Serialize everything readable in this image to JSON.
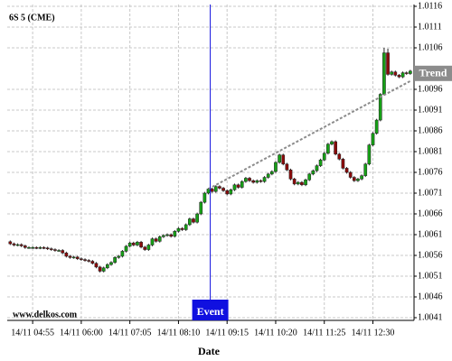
{
  "chart_data": {
    "type": "candlestick",
    "title": "6S 5 (CME)",
    "watermark": "www.delkos.com",
    "x_label": "Date",
    "xlim": [
      -0.8,
      108
    ],
    "xticks": [
      {
        "value": 6,
        "label": "14/11 04:55"
      },
      {
        "value": 19,
        "label": "14/11 06:00"
      },
      {
        "value": 32,
        "label": "14/11 07:05"
      },
      {
        "value": 45,
        "label": "14/11 08:10"
      },
      {
        "value": 58,
        "label": "14/11 09:15"
      },
      {
        "value": 71,
        "label": "14/11 10:20"
      },
      {
        "value": 84,
        "label": "14/11 11:25"
      },
      {
        "value": 97,
        "label": "14/11 12:30"
      }
    ],
    "ylim": [
      1.0041,
      1.0116
    ],
    "yticks": [
      1.0041,
      1.0046,
      1.0051,
      1.0056,
      1.0061,
      1.0066,
      1.0071,
      1.0076,
      1.0081,
      1.0086,
      1.0091,
      1.0096,
      1.0106,
      1.0111,
      1.0116
    ],
    "grid": true,
    "up_color": "#16a016",
    "down_color": "#8b0a0a",
    "open": [
      1.00593,
      1.00588,
      1.00585,
      1.00586,
      1.00583,
      1.00579,
      1.00579,
      1.00579,
      1.00578,
      1.00579,
      1.00578,
      1.00576,
      1.00574,
      1.00572,
      1.00572,
      1.00566,
      1.00558,
      1.00555,
      1.00556,
      1.00552,
      1.0055,
      1.00548,
      1.00546,
      1.00541,
      1.00532,
      1.00522,
      1.0053,
      1.00538,
      1.00543,
      1.00555,
      1.00558,
      1.0057,
      1.00582,
      1.0059,
      1.00585,
      1.00592,
      1.0058,
      1.00574,
      1.00585,
      1.006,
      1.00594,
      1.00605,
      1.00608,
      1.0061,
      1.00606,
      1.00618,
      1.00625,
      1.00622,
      1.00634,
      1.00648,
      1.0064,
      1.0066,
      1.00688,
      1.0071,
      1.0072,
      1.00714,
      1.00726,
      1.00722,
      1.00716,
      1.00708,
      1.00718,
      1.0073,
      1.00724,
      1.00738,
      1.00746,
      1.0074,
      1.00736,
      1.0074,
      1.00738,
      1.00748,
      1.00756,
      1.00762,
      1.00784,
      1.00802,
      1.0078,
      1.00766,
      1.00744,
      1.00732,
      1.00736,
      1.0073,
      1.00742,
      1.00756,
      1.00764,
      1.00776,
      1.0079,
      1.00806,
      1.00828,
      1.00834,
      1.00804,
      1.00792,
      1.0077,
      1.0076,
      1.00748,
      1.0074,
      1.00744,
      1.00752,
      1.0078,
      1.00826,
      1.00854,
      1.00886,
      1.00948,
      1.01048,
      1.00996,
      1.01002,
      1.00994,
      1.0099,
      1.01,
      1.00998
    ],
    "high": [
      1.00596,
      1.00591,
      1.00589,
      1.00589,
      1.00586,
      1.00582,
      1.00582,
      1.00582,
      1.00582,
      1.00582,
      1.00581,
      1.00579,
      1.00577,
      1.00575,
      1.00575,
      1.00569,
      1.00561,
      1.00559,
      1.00559,
      1.00555,
      1.00553,
      1.00551,
      1.00549,
      1.00544,
      1.00535,
      1.00533,
      1.00541,
      1.00546,
      1.00558,
      1.00561,
      1.00573,
      1.00585,
      1.00593,
      1.00593,
      1.00595,
      1.00595,
      1.00583,
      1.00588,
      1.00603,
      1.00603,
      1.00608,
      1.00611,
      1.00613,
      1.00613,
      1.00621,
      1.00628,
      1.00628,
      1.00637,
      1.00651,
      1.00651,
      1.00663,
      1.00691,
      1.00713,
      1.00723,
      1.00723,
      1.00729,
      1.00729,
      1.00725,
      1.00719,
      1.00721,
      1.00733,
      1.00733,
      1.00741,
      1.00749,
      1.00749,
      1.00743,
      1.00743,
      1.00743,
      1.00751,
      1.00759,
      1.00765,
      1.00787,
      1.00805,
      1.00805,
      1.00783,
      1.00769,
      1.00747,
      1.00739,
      1.00739,
      1.00745,
      1.00759,
      1.00767,
      1.00779,
      1.00793,
      1.00809,
      1.00831,
      1.00837,
      1.00837,
      1.00807,
      1.00795,
      1.00773,
      1.00763,
      1.00751,
      1.00747,
      1.00755,
      1.00783,
      1.00829,
      1.00857,
      1.00889,
      1.00951,
      1.0106,
      1.01058,
      1.01005,
      1.01005,
      1.00997,
      1.01003,
      1.01003,
      1.01007
    ],
    "low": [
      1.00585,
      1.00582,
      1.00582,
      1.0058,
      1.00576,
      1.00576,
      1.00576,
      1.00575,
      1.00575,
      1.00575,
      1.00573,
      1.00571,
      1.00569,
      1.00569,
      1.00563,
      1.00555,
      1.00552,
      1.00552,
      1.00549,
      1.00547,
      1.00545,
      1.00543,
      1.00538,
      1.00529,
      1.00519,
      1.00519,
      1.00527,
      1.00535,
      1.0054,
      1.00552,
      1.00555,
      1.00567,
      1.00579,
      1.00582,
      1.00582,
      1.00577,
      1.00571,
      1.00571,
      1.00582,
      1.00591,
      1.00591,
      1.00602,
      1.00605,
      1.00603,
      1.00603,
      1.00615,
      1.00619,
      1.00619,
      1.00631,
      1.00637,
      1.00637,
      1.00657,
      1.00685,
      1.00707,
      1.00711,
      1.00711,
      1.00719,
      1.00713,
      1.00705,
      1.00705,
      1.00715,
      1.00721,
      1.00721,
      1.00735,
      1.00737,
      1.00733,
      1.00733,
      1.00735,
      1.00735,
      1.00745,
      1.00753,
      1.00759,
      1.00781,
      1.00777,
      1.00763,
      1.00741,
      1.00729,
      1.00729,
      1.00727,
      1.00727,
      1.00739,
      1.00753,
      1.00761,
      1.00773,
      1.00787,
      1.00803,
      1.00825,
      1.00801,
      1.00789,
      1.00767,
      1.00757,
      1.00745,
      1.00737,
      1.00737,
      1.00741,
      1.00749,
      1.00777,
      1.00823,
      1.00851,
      1.00883,
      1.00945,
      1.00993,
      1.00993,
      1.00991,
      1.00987,
      1.00987,
      1.00995,
      1.00995
    ],
    "close": [
      1.00588,
      1.00585,
      1.00586,
      1.00583,
      1.00579,
      1.00579,
      1.00579,
      1.00578,
      1.00579,
      1.00578,
      1.00576,
      1.00574,
      1.00572,
      1.00572,
      1.00566,
      1.00558,
      1.00555,
      1.00556,
      1.00552,
      1.0055,
      1.00548,
      1.00546,
      1.00541,
      1.00532,
      1.00522,
      1.0053,
      1.00538,
      1.00543,
      1.00555,
      1.00558,
      1.0057,
      1.00582,
      1.0059,
      1.00585,
      1.00592,
      1.0058,
      1.00574,
      1.00585,
      1.006,
      1.00594,
      1.00605,
      1.00608,
      1.0061,
      1.00606,
      1.00618,
      1.00625,
      1.00622,
      1.00634,
      1.00648,
      1.0064,
      1.0066,
      1.00688,
      1.0071,
      1.0072,
      1.00714,
      1.00726,
      1.00722,
      1.00716,
      1.00708,
      1.00718,
      1.0073,
      1.00724,
      1.00738,
      1.00746,
      1.0074,
      1.00736,
      1.0074,
      1.00738,
      1.00748,
      1.00756,
      1.00762,
      1.00784,
      1.00802,
      1.0078,
      1.00766,
      1.00744,
      1.00732,
      1.00736,
      1.0073,
      1.00742,
      1.00756,
      1.00764,
      1.00776,
      1.0079,
      1.00806,
      1.00828,
      1.00834,
      1.00804,
      1.00792,
      1.0077,
      1.0076,
      1.00748,
      1.0074,
      1.00744,
      1.00752,
      1.0078,
      1.00826,
      1.00854,
      1.00886,
      1.00948,
      1.01048,
      1.00996,
      1.01002,
      1.00994,
      1.0099,
      1.01,
      1.00998,
      1.01004
    ],
    "trend": {
      "label": "Trend",
      "color": "#8c8c8c",
      "x": [
        53,
        107
      ],
      "values": [
        1.0072,
        1.0098
      ]
    },
    "event": {
      "label": "Event",
      "color": "#1010e0",
      "x": 53.5
    }
  }
}
